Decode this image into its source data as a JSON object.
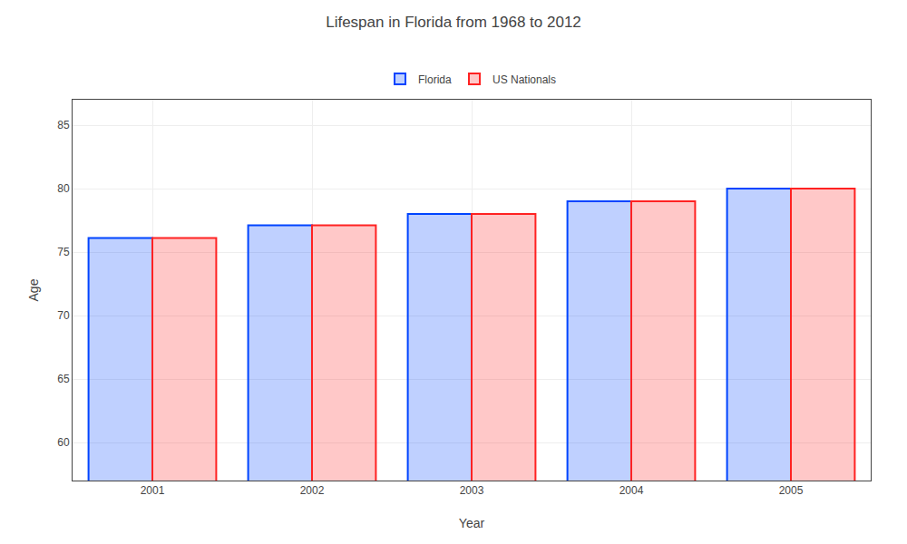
{
  "chart_data": {
    "type": "bar",
    "title": "Lifespan in Florida from 1968 to 2012",
    "xlabel": "Year",
    "ylabel": "Age",
    "categories": [
      "2001",
      "2002",
      "2003",
      "2004",
      "2005"
    ],
    "series": [
      {
        "name": "Florida",
        "color": "#0044ff",
        "values": [
          76.1,
          77.1,
          78.0,
          79.0,
          80.0
        ]
      },
      {
        "name": "US Nationals",
        "color": "#ff2222",
        "values": [
          76.1,
          77.1,
          78.0,
          79.0,
          80.0
        ]
      }
    ],
    "ylim": [
      57,
      87
    ],
    "yticks": [
      60,
      65,
      70,
      75,
      80,
      85
    ],
    "grid": true,
    "legend": "upper center"
  }
}
